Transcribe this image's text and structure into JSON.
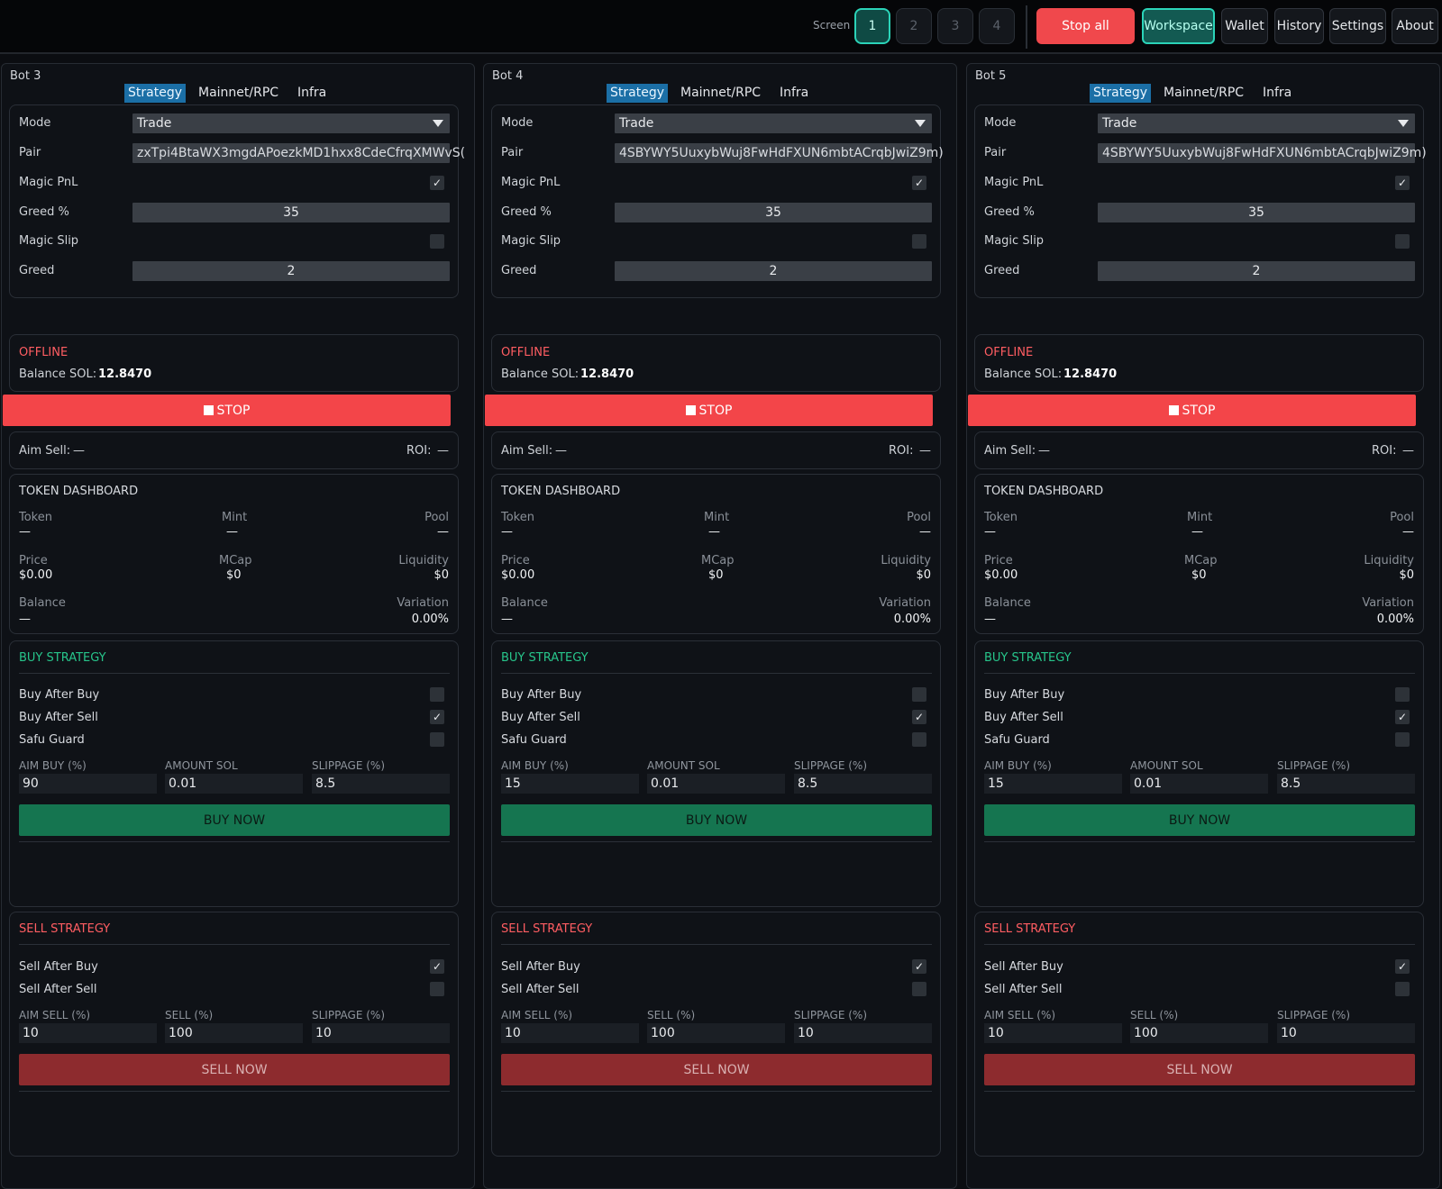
{
  "topbar": {
    "screen_label": "Screen",
    "screens": [
      "1",
      "2",
      "3",
      "4"
    ],
    "stop_all": "Stop all",
    "nav": {
      "workspace": "Workspace",
      "wallet": "Wallet",
      "history": "History",
      "settings": "Settings",
      "about": "About"
    }
  },
  "tabs": [
    "Strategy",
    "Mainnet/RPC",
    "Infra"
  ],
  "labels": {
    "mode": "Mode",
    "pair": "Pair",
    "magic_pnl": "Magic PnL",
    "greed_pct": "Greed %",
    "magic_slip": "Magic Slip",
    "greed": "Greed",
    "offline": "OFFLINE",
    "balance_sol": "Balance SOL:",
    "stop": "STOP",
    "aim_sell": "Aim Sell:",
    "roi": "ROI:",
    "token_dashboard": "TOKEN DASHBOARD",
    "token": "Token",
    "mint": "Mint",
    "pool": "Pool",
    "price": "Price",
    "mcap": "MCap",
    "liquidity": "Liquidity",
    "balance": "Balance",
    "variation": "Variation",
    "buy_strategy": "BUY STRATEGY",
    "buy_after_buy": "Buy After Buy",
    "buy_after_sell": "Buy After Sell",
    "safu_guard": "Safu Guard",
    "aim_buy_pct": "AIM BUY (%)",
    "amount_sol": "AMOUNT SOL",
    "slippage_pct": "SLIPPAGE (%)",
    "buy_now": "BUY NOW",
    "sell_strategy": "SELL STRATEGY",
    "sell_after_buy": "Sell After Buy",
    "sell_after_sell": "Sell After Sell",
    "aim_sell_pct": "AIM SELL (%)",
    "sell_pct": "SELL (%)",
    "sell_now": "SELL NOW"
  },
  "bots": [
    {
      "title": "Bot 3",
      "mode": "Trade",
      "pair": "zxTpi4BtaWX3mgdAPoezkMD1hxx8CdeCfrqXMWvS(",
      "magic_pnl": "✓",
      "greed_pct": "35",
      "magic_slip": "",
      "greed": "2",
      "status": "OFFLINE",
      "balance_sol": "12.8470",
      "aim_sell": "—",
      "roi": "—",
      "token": "—",
      "mint": "—",
      "pool": "—",
      "price": "$0.00",
      "mcap": "$0",
      "liquidity": "$0",
      "balance": "—",
      "variation": "0.00%",
      "buy_after_buy": "",
      "buy_after_sell": "✓",
      "safu_guard": "",
      "aim_buy": "90",
      "amount_sol": "0.01",
      "buy_slippage": "8.5",
      "sell_after_buy": "✓",
      "sell_after_sell": "",
      "aim_sell_pct": "10",
      "sell_pct": "100",
      "sell_slippage": "10"
    },
    {
      "title": "Bot 4",
      "mode": "Trade",
      "pair": "4SBYWY5UuxybWuj8FwHdFXUN6mbtACrqbJwiZ9m)",
      "magic_pnl": "✓",
      "greed_pct": "35",
      "magic_slip": "",
      "greed": "2",
      "status": "OFFLINE",
      "balance_sol": "12.8470",
      "aim_sell": "—",
      "roi": "—",
      "token": "—",
      "mint": "—",
      "pool": "—",
      "price": "$0.00",
      "mcap": "$0",
      "liquidity": "$0",
      "balance": "—",
      "variation": "0.00%",
      "buy_after_buy": "",
      "buy_after_sell": "✓",
      "safu_guard": "",
      "aim_buy": "15",
      "amount_sol": "0.01",
      "buy_slippage": "8.5",
      "sell_after_buy": "✓",
      "sell_after_sell": "",
      "aim_sell_pct": "10",
      "sell_pct": "100",
      "sell_slippage": "10"
    },
    {
      "title": "Bot 5",
      "mode": "Trade",
      "pair": "4SBYWY5UuxybWuj8FwHdFXUN6mbtACrqbJwiZ9m)",
      "magic_pnl": "✓",
      "greed_pct": "35",
      "magic_slip": "",
      "greed": "2",
      "status": "OFFLINE",
      "balance_sol": "12.8470",
      "aim_sell": "—",
      "roi": "—",
      "token": "—",
      "mint": "—",
      "pool": "—",
      "price": "$0.00",
      "mcap": "$0",
      "liquidity": "$0",
      "balance": "—",
      "variation": "0.00%",
      "buy_after_buy": "",
      "buy_after_sell": "✓",
      "safu_guard": "",
      "aim_buy": "15",
      "amount_sol": "0.01",
      "buy_slippage": "8.5",
      "sell_after_buy": "✓",
      "sell_after_sell": "",
      "aim_sell_pct": "10",
      "sell_pct": "100",
      "sell_slippage": "10"
    }
  ],
  "colors": {
    "accent": "#2bd3b8",
    "stop": "#f34549",
    "buy": "#157550",
    "sell": "#8d2b2e",
    "tab_active": "#1b6fa6"
  }
}
